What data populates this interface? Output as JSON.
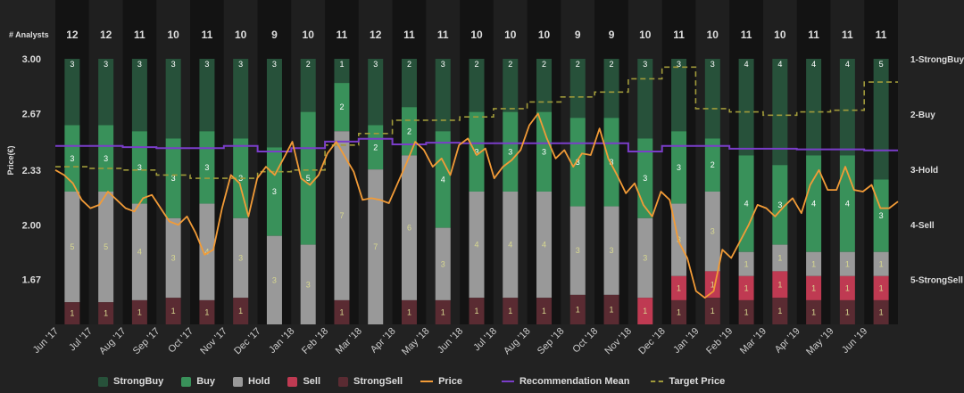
{
  "chart_data": {
    "type": "stacked-bar-with-lines",
    "analysts_label": "# Analysts",
    "y_axis_label": "Price(€)",
    "y_ticks": [
      "3.00",
      "2.67",
      "2.33",
      "2.00",
      "1.67"
    ],
    "ylim": [
      1.4,
      3.0
    ],
    "right_axis_labels": [
      "1-StrongBuy",
      "2-Buy",
      "3-Hold",
      "4-Sell",
      "5-StrongSell"
    ],
    "categories": [
      "Jun '17",
      "Jul '17",
      "Aug '17",
      "Sep '17",
      "Oct '17",
      "Nov '17",
      "Dec '17",
      "Jan '18",
      "Feb '18",
      "Mar '18",
      "Apr '18",
      "May '18",
      "Jun '18",
      "Jul '18",
      "Aug '18",
      "Sep '18",
      "Oct '18",
      "Nov '18",
      "Dec '18",
      "Jan '19",
      "Feb '19",
      "Mar '19",
      "Apr '19",
      "May '19",
      "Jun '19"
    ],
    "analysts": [
      12,
      12,
      11,
      10,
      11,
      10,
      9,
      10,
      11,
      12,
      11,
      11,
      10,
      10,
      10,
      9,
      9,
      10,
      11,
      10,
      11,
      10,
      11,
      11,
      11
    ],
    "bar_series": [
      {
        "name": "StrongBuy",
        "color": "#27513a",
        "values": [
          3,
          3,
          3,
          3,
          3,
          3,
          3,
          2,
          1,
          3,
          2,
          3,
          2,
          2,
          2,
          2,
          2,
          3,
          3,
          3,
          4,
          4,
          4,
          4,
          5
        ]
      },
      {
        "name": "Buy",
        "color": "#39915a",
        "values": [
          3,
          3,
          3,
          3,
          3,
          3,
          3,
          5,
          2,
          2,
          2,
          4,
          3,
          3,
          3,
          3,
          3,
          3,
          3,
          2,
          4,
          3,
          4,
          4,
          3
        ]
      },
      {
        "name": "Hold",
        "color": "#999999",
        "values": [
          5,
          5,
          4,
          3,
          4,
          3,
          3,
          3,
          7,
          7,
          6,
          3,
          4,
          4,
          4,
          3,
          3,
          3,
          3,
          3,
          1,
          1,
          1,
          1,
          1
        ]
      },
      {
        "name": "Sell",
        "color": "#bf3a52",
        "values": [
          0,
          0,
          0,
          0,
          0,
          0,
          0,
          0,
          0,
          0,
          0,
          0,
          0,
          0,
          0,
          0,
          0,
          1,
          1,
          1,
          1,
          1,
          1,
          1,
          1
        ]
      },
      {
        "name": "StrongSell",
        "color": "#5a2b32",
        "values": [
          1,
          1,
          1,
          1,
          1,
          1,
          0,
          0,
          1,
          0,
          1,
          1,
          1,
          1,
          1,
          1,
          1,
          0,
          1,
          1,
          1,
          1,
          1,
          1,
          1
        ]
      }
    ],
    "price": [
      2.33,
      2.3,
      2.25,
      2.15,
      2.1,
      2.12,
      2.2,
      2.15,
      2.1,
      2.08,
      2.16,
      2.18,
      2.1,
      2.02,
      2.0,
      2.05,
      1.95,
      1.82,
      1.85,
      2.1,
      2.3,
      2.25,
      2.05,
      2.28,
      2.35,
      2.3,
      2.4,
      2.5,
      2.28,
      2.24,
      2.3,
      2.43,
      2.5,
      2.41,
      2.32,
      2.15,
      2.16,
      2.15,
      2.13,
      2.25,
      2.37,
      2.5,
      2.45,
      2.35,
      2.4,
      2.3,
      2.48,
      2.52,
      2.42,
      2.46,
      2.28,
      2.35,
      2.39,
      2.45,
      2.6,
      2.67,
      2.52,
      2.4,
      2.45,
      2.35,
      2.43,
      2.42,
      2.58,
      2.4,
      2.3,
      2.19,
      2.25,
      2.12,
      2.05,
      2.2,
      2.15,
      1.9,
      1.8,
      1.6,
      1.56,
      1.6,
      1.85,
      1.8,
      1.9,
      2.0,
      2.12,
      2.1,
      2.05,
      2.11,
      2.16,
      2.07,
      2.24,
      2.33,
      2.21,
      2.21,
      2.35,
      2.21,
      2.2,
      2.24,
      2.1,
      2.1,
      2.14
    ],
    "recommendation_mean": [
      2.58,
      2.58,
      2.6,
      2.62,
      2.62,
      2.58,
      2.68,
      2.62,
      2.5,
      2.45,
      2.55,
      2.52,
      2.53,
      2.53,
      2.53,
      2.53,
      2.53,
      2.68,
      2.58,
      2.58,
      2.63,
      2.63,
      2.64,
      2.64,
      2.66
    ],
    "target_price": [
      2.35,
      2.34,
      2.33,
      2.3,
      2.28,
      2.28,
      2.32,
      2.33,
      2.48,
      2.55,
      2.63,
      2.63,
      2.65,
      2.7,
      2.74,
      2.77,
      2.8,
      2.88,
      2.95,
      2.7,
      2.68,
      2.66,
      2.68,
      2.69,
      2.86
    ],
    "legend": [
      "StrongBuy",
      "Buy",
      "Hold",
      "Sell",
      "StrongSell",
      "Price",
      "Recommendation Mean",
      "Target Price"
    ],
    "colors": {
      "background": "#222222",
      "column_odd": "#131313",
      "column_even": "#1f1f1f",
      "price": "#f29b37",
      "recommendation_mean": "#7a3dc9",
      "target_price": "#a09a3a",
      "text": "#dddddd",
      "count_text": "#d8d890"
    }
  }
}
